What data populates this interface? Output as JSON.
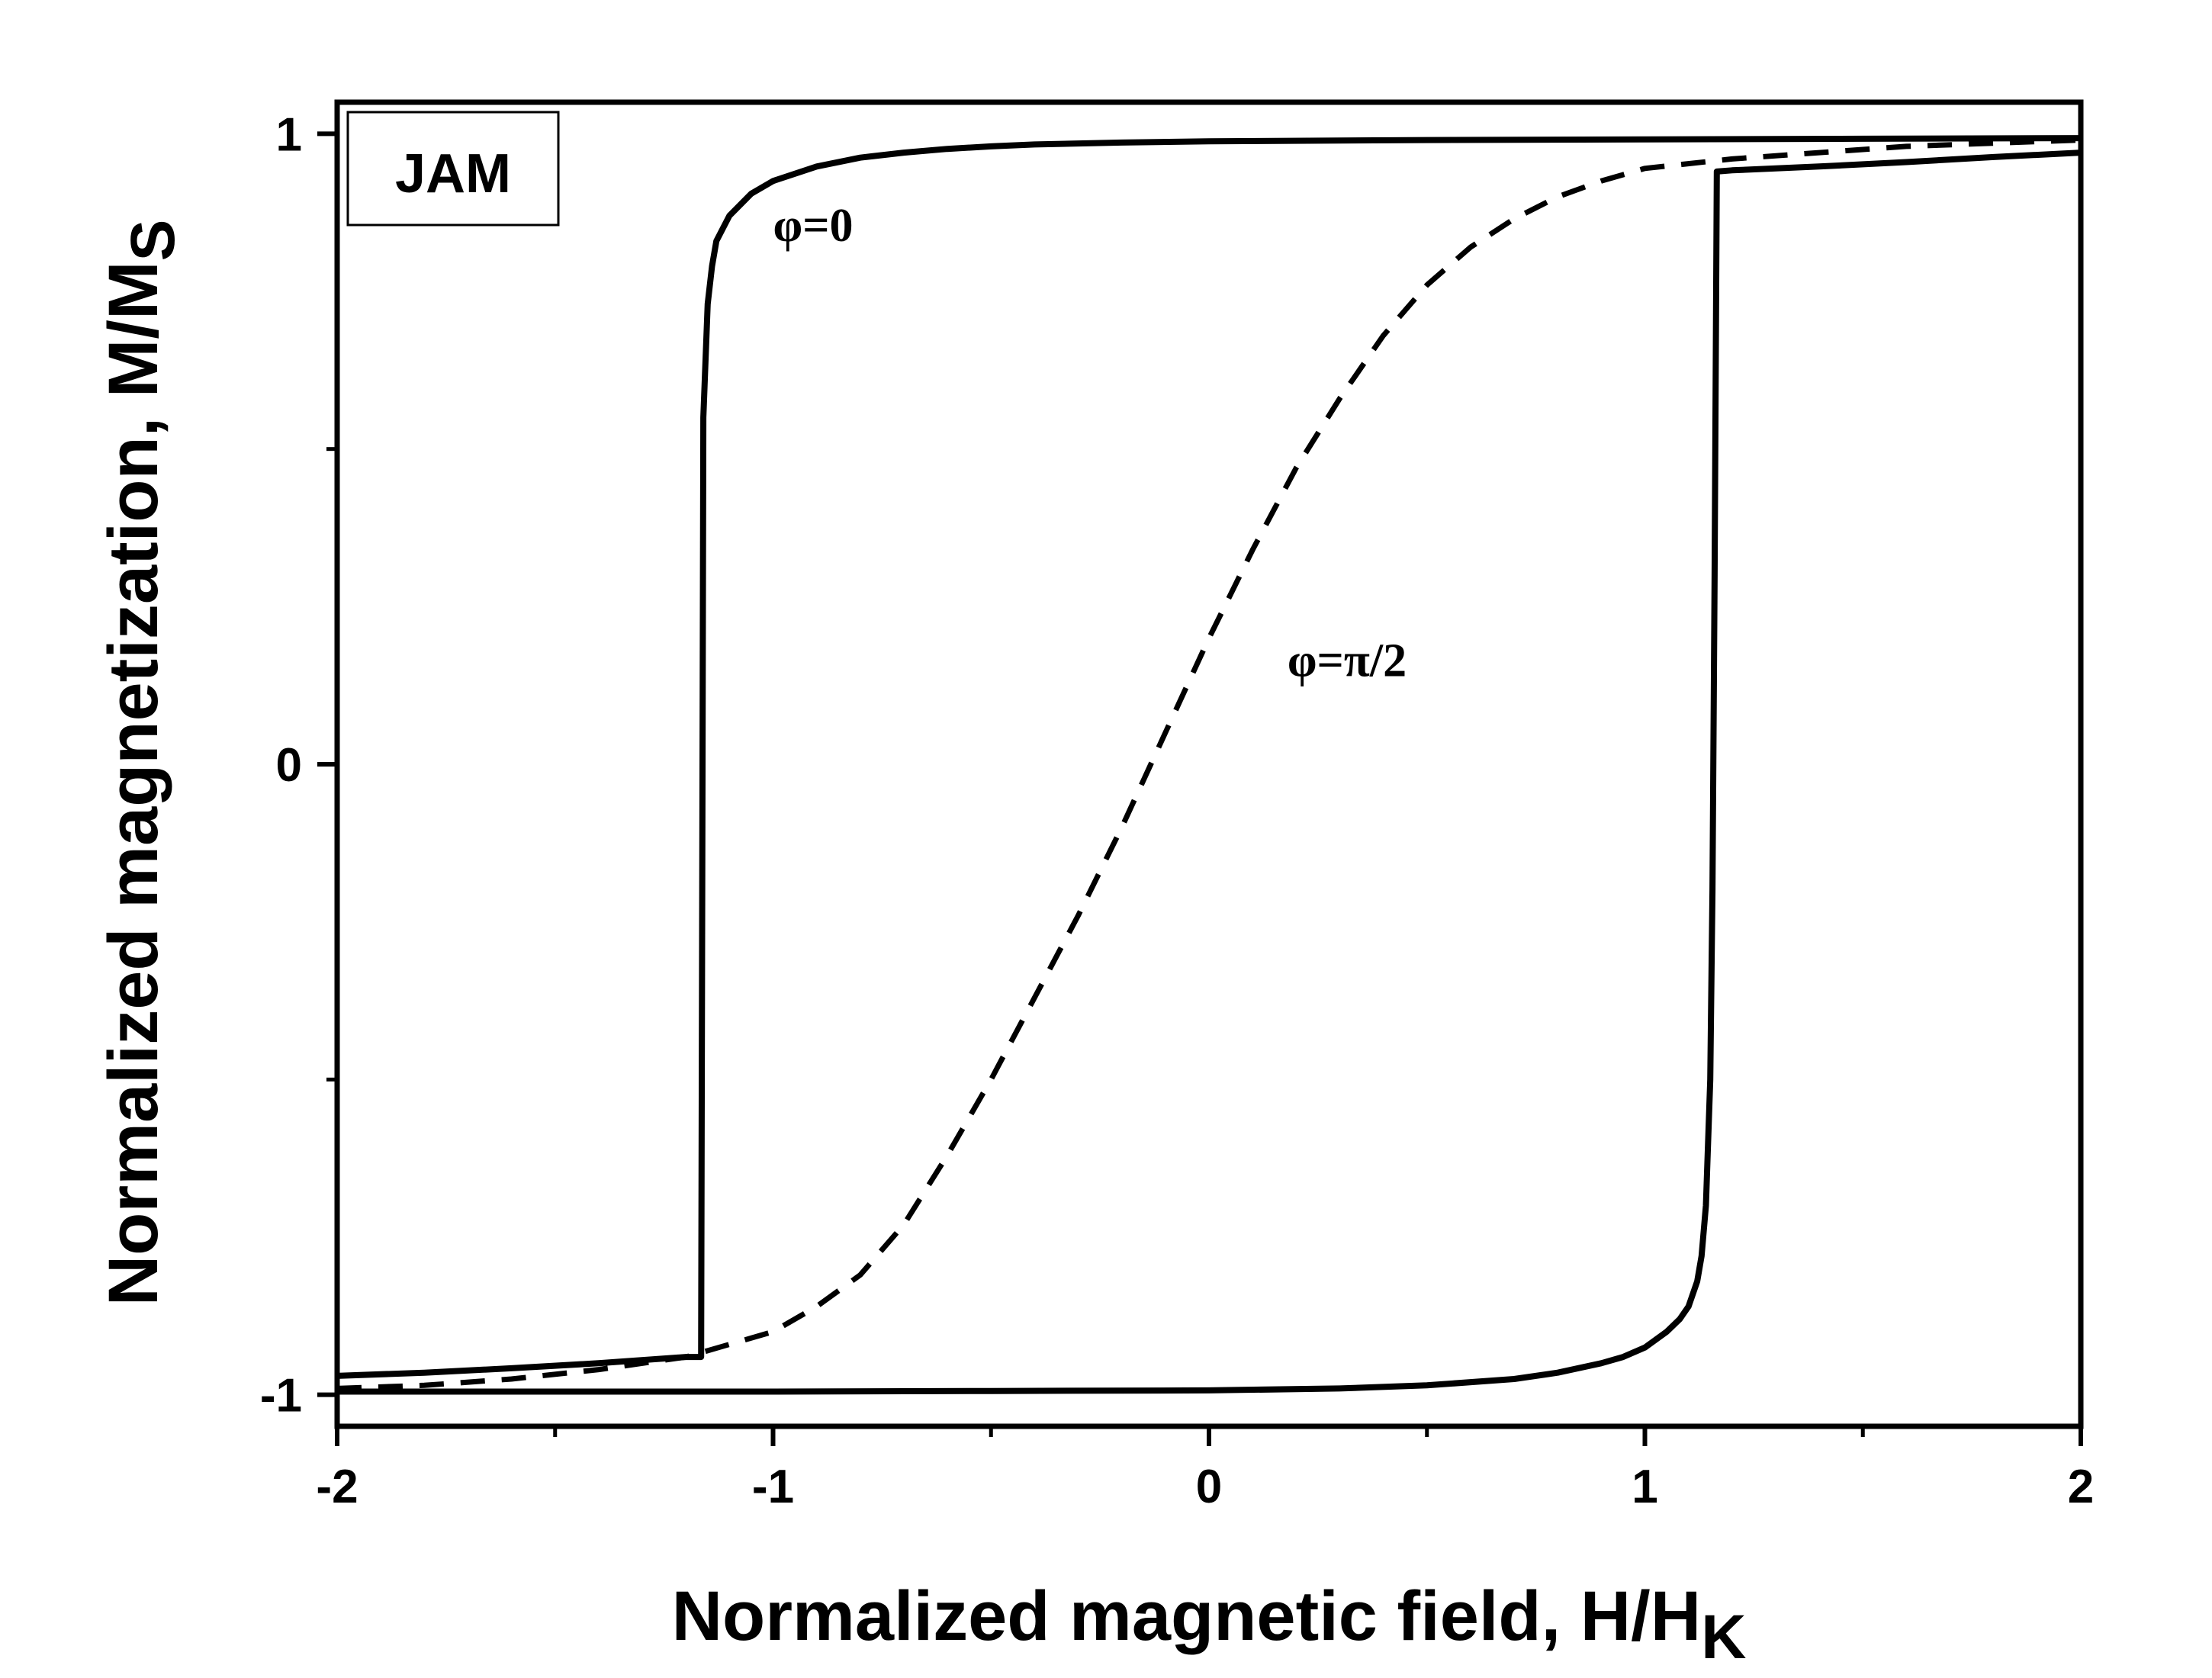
{
  "chart_data": {
    "type": "line",
    "box_label": "JAM",
    "xlabel": {
      "main": "Normalized magnetic field, H/H",
      "sub": "K"
    },
    "ylabel": {
      "main": "Normalized magnetization, M/M",
      "sub": "S"
    },
    "xlim": [
      -2,
      2
    ],
    "ylim": [
      -1.05,
      1.05
    ],
    "x_ticks": [
      -2,
      -1,
      0,
      1,
      2
    ],
    "x_minor_ticks": [
      -1.5,
      -0.5,
      0.5,
      1.5
    ],
    "x_tick_labels": [
      "-2",
      "-1",
      "0",
      "1",
      "2"
    ],
    "y_ticks": [
      -1,
      0,
      1
    ],
    "y_minor_ticks": [
      -0.5,
      0.5
    ],
    "y_tick_labels": [
      "-1",
      "0",
      "1"
    ],
    "grid": false,
    "annotations": [
      {
        "text": "φ=0",
        "x": -1.0,
        "y": 0.83
      },
      {
        "text": "φ=π/2",
        "x": 0.18,
        "y": 0.14
      }
    ],
    "series": [
      {
        "style": "solid",
        "segments": [
          {
            "x": [
              -2.0,
              -1.8,
              -1.6,
              -1.4,
              -1.2,
              -1.165,
              -1.16,
              -1.15,
              -1.14,
              -1.13,
              -1.1,
              -1.05,
              -1.0,
              -0.9,
              -0.8,
              -0.7,
              -0.6,
              -0.5,
              -0.4,
              -0.2,
              0.0,
              0.5,
              1.0,
              1.5,
              2.0
            ],
            "y": [
              -0.97,
              -0.965,
              -0.958,
              -0.95,
              -0.94,
              -0.94,
              0.55,
              0.73,
              0.79,
              0.83,
              0.87,
              0.905,
              0.925,
              0.948,
              0.962,
              0.97,
              0.976,
              0.98,
              0.983,
              0.986,
              0.988,
              0.99,
              0.991,
              0.992,
              0.993
            ]
          },
          {
            "x": [
              -2.0,
              -1.5,
              -1.0,
              -0.5,
              0.0,
              0.3,
              0.5,
              0.7,
              0.8,
              0.9,
              0.95,
              1.0,
              1.05,
              1.08,
              1.1,
              1.12,
              1.13,
              1.14,
              1.15,
              1.155,
              1.16,
              1.165,
              1.2,
              1.4,
              1.6,
              1.8,
              2.0
            ],
            "y": [
              -0.995,
              -0.995,
              -0.995,
              -0.994,
              -0.993,
              -0.99,
              -0.985,
              -0.975,
              -0.965,
              -0.95,
              -0.94,
              -0.925,
              -0.9,
              -0.88,
              -0.86,
              -0.82,
              -0.78,
              -0.7,
              -0.5,
              -0.2,
              0.3,
              0.94,
              0.942,
              0.948,
              0.955,
              0.963,
              0.97
            ]
          }
        ]
      },
      {
        "style": "dashed",
        "segments": [
          {
            "x": [
              -2.0,
              -1.8,
              -1.6,
              -1.4,
              -1.2,
              -1.0,
              -0.9,
              -0.8,
              -0.7,
              -0.6,
              -0.5,
              -0.4,
              -0.3,
              -0.2,
              -0.1,
              0.0,
              0.1,
              0.2,
              0.3,
              0.4,
              0.5,
              0.6,
              0.7,
              0.8,
              0.9,
              1.0,
              1.2,
              1.4,
              1.6,
              1.8,
              2.0
            ],
            "y": [
              -0.99,
              -0.985,
              -0.975,
              -0.96,
              -0.94,
              -0.9,
              -0.86,
              -0.81,
              -0.73,
              -0.62,
              -0.5,
              -0.37,
              -0.24,
              -0.1,
              0.05,
              0.2,
              0.34,
              0.47,
              0.58,
              0.68,
              0.76,
              0.82,
              0.865,
              0.9,
              0.925,
              0.945,
              0.96,
              0.97,
              0.98,
              0.985,
              0.99
            ]
          }
        ]
      }
    ]
  }
}
